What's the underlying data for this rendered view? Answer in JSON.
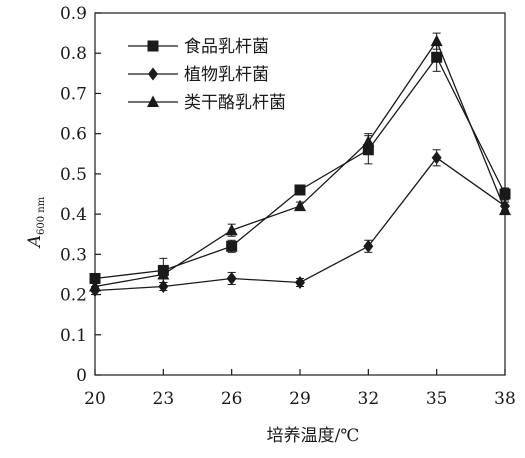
{
  "chart_data": {
    "type": "line",
    "title": "",
    "xlabel": "培养温度/℃",
    "ylabel": "A",
    "ylabel_subscript": "600 nm",
    "x": [
      20,
      23,
      26,
      29,
      32,
      35,
      38
    ],
    "x_tick_labels": [
      "20",
      "23",
      "26",
      "29",
      "32",
      "35",
      "38"
    ],
    "ylim": [
      0,
      0.9
    ],
    "y_ticks": [
      0,
      0.1,
      0.2,
      0.3,
      0.4,
      0.5,
      0.6,
      0.7,
      0.8,
      0.9
    ],
    "y_tick_labels": [
      "0",
      "0.1",
      "0.2",
      "0.3",
      "0.4",
      "0.5",
      "0.6",
      "0.7",
      "0.8",
      "0.9"
    ],
    "grid": false,
    "legend_position": "top-left",
    "series": [
      {
        "name": "食品乳杆菌",
        "marker": "square",
        "values": [
          0.24,
          0.26,
          0.32,
          0.46,
          0.56,
          0.79,
          0.45
        ],
        "errors": [
          0.01,
          0.03,
          0.015,
          0.01,
          0.035,
          0.035,
          0.015
        ]
      },
      {
        "name": "植物乳杆菌",
        "marker": "diamond",
        "values": [
          0.21,
          0.22,
          0.24,
          0.23,
          0.32,
          0.54,
          0.42
        ],
        "errors": [
          0.01,
          0.01,
          0.015,
          0.01,
          0.015,
          0.02,
          0.01
        ]
      },
      {
        "name": "类干酪乳杆菌",
        "marker": "triangle",
        "values": [
          0.22,
          0.25,
          0.36,
          0.42,
          0.58,
          0.83,
          0.41
        ],
        "errors": [
          0.01,
          0.02,
          0.015,
          0.01,
          0.02,
          0.02,
          0.01
        ]
      }
    ],
    "line_color": "#1a1a1a"
  }
}
